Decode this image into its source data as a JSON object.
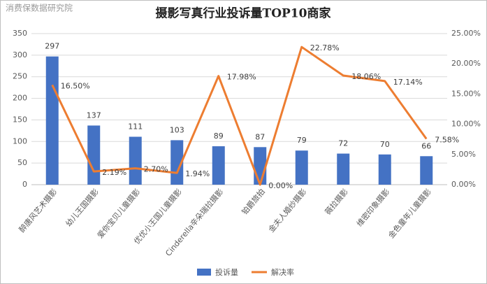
{
  "watermark": "消费保数据研究院",
  "chart_data": {
    "type": "bar",
    "title": "摄影写真行业投诉量TOP10商家",
    "categories": [
      "醉唐风艺术摄影",
      "幼儿王国摄影",
      "爱你宝贝儿童摄影",
      "优优小王国儿童摄影",
      "Cinderella辛朵瑞拉摄影",
      "铂爵旅拍",
      "金夫人婚纱摄影",
      "薇拉摄影",
      "维密印象摄影",
      "金色童年儿童摄影"
    ],
    "series": [
      {
        "name": "投诉量",
        "type": "bar",
        "color": "#4472c4",
        "values": [
          297,
          137,
          111,
          103,
          89,
          87,
          79,
          72,
          70,
          66
        ]
      },
      {
        "name": "解决率",
        "type": "line",
        "axis": "y2",
        "color": "#ed7d31",
        "values": [
          16.5,
          2.19,
          2.7,
          1.94,
          17.98,
          0,
          22.78,
          18.06,
          17.14,
          7.58
        ],
        "value_labels": [
          "16.50%",
          "2.19%",
          "2.70%",
          "1.94%",
          "17.98%",
          "0.00%",
          "22.78%",
          "18.06%",
          "17.14%",
          "7.58%"
        ]
      }
    ],
    "ylim": [
      0,
      350
    ],
    "yticks": [
      0,
      50,
      100,
      150,
      200,
      250,
      300,
      350
    ],
    "y2lim": [
      0,
      25
    ],
    "y2ticks": [
      {
        "value": 0,
        "label": "0.00%"
      },
      {
        "value": 5,
        "label": "5.00%"
      },
      {
        "value": 10,
        "label": "10.00%"
      },
      {
        "value": 15,
        "label": "15.00%"
      },
      {
        "value": 20,
        "label": "20.00%"
      },
      {
        "value": 25,
        "label": "25.00%"
      }
    ],
    "grid": true,
    "legend": "bottom"
  }
}
